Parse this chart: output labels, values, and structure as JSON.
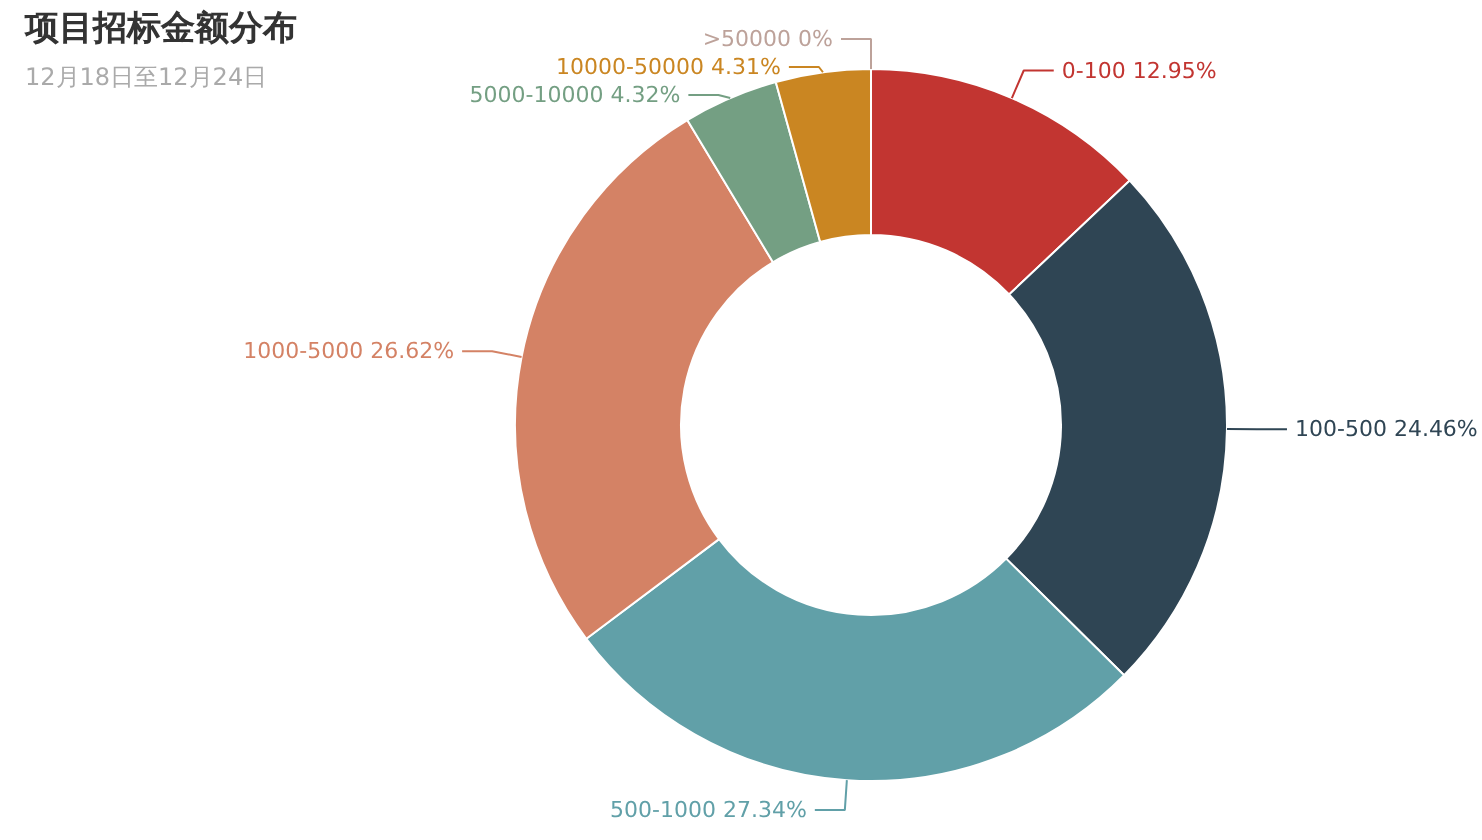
{
  "chart_data": {
    "type": "donut",
    "title": "项目招标金额分布",
    "subtitle": "12月18日至12月24日",
    "categories": [
      "0-100",
      "100-500",
      "500-1000",
      "1000-5000",
      "5000-10000",
      "10000-50000",
      ">50000"
    ],
    "values": [
      12.95,
      24.46,
      27.34,
      26.62,
      4.32,
      4.31,
      0
    ],
    "value_labels": [
      "12.95%",
      "24.46%",
      "27.34%",
      "26.62%",
      "4.32%",
      "4.31%",
      "0%"
    ],
    "colors": [
      "#c23531",
      "#2f4554",
      "#61a0a8",
      "#d48265",
      "#749f83",
      "#ca8622",
      "#bda29a"
    ]
  }
}
